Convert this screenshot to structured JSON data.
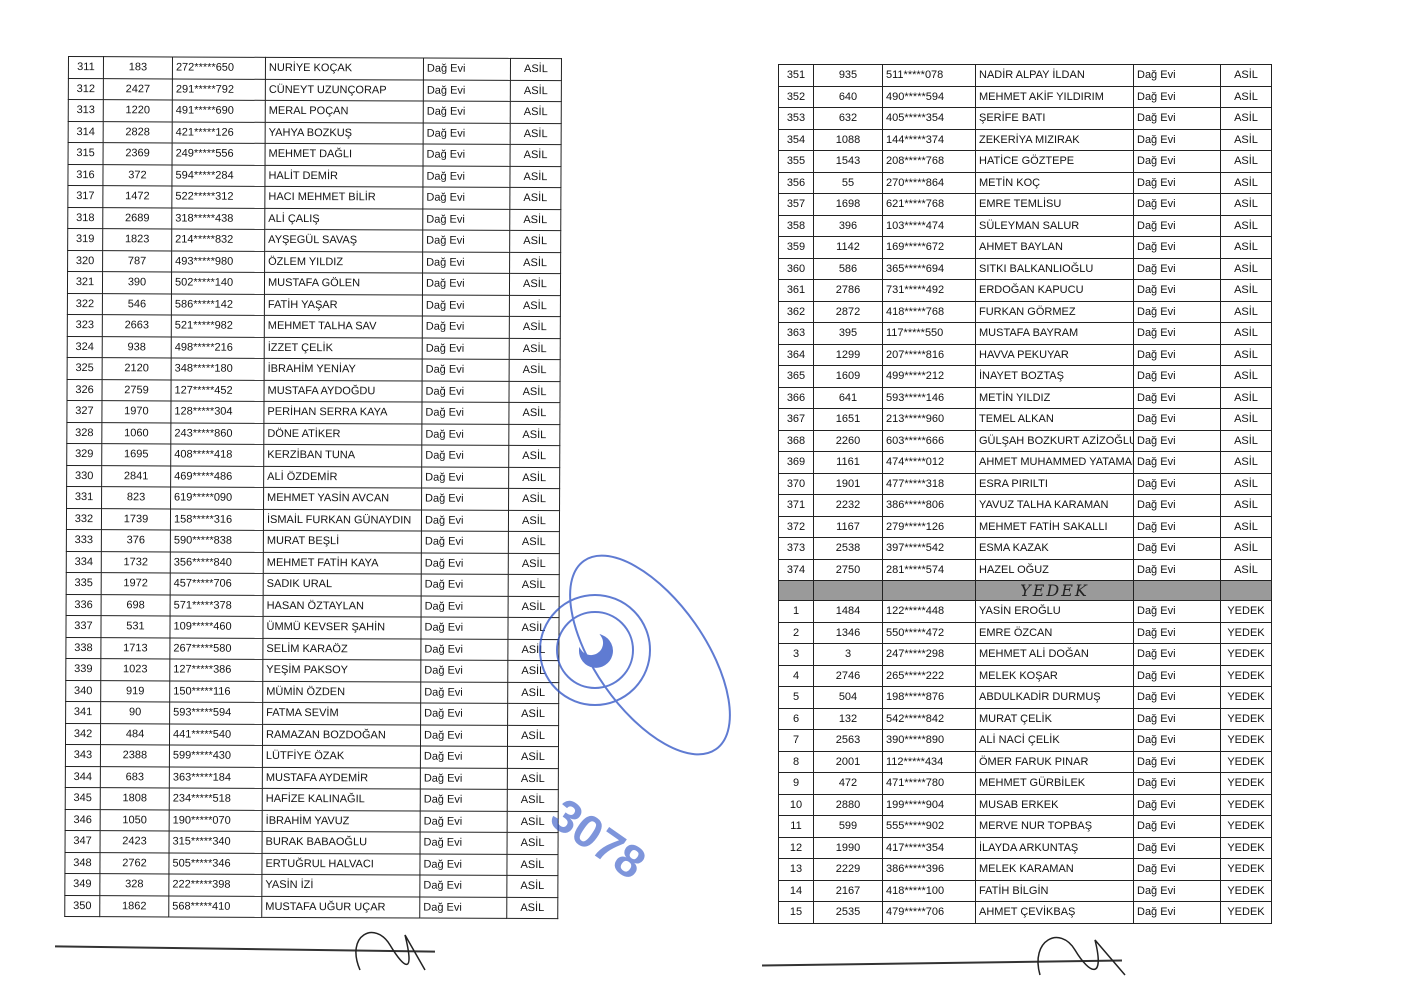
{
  "left_table": {
    "rows": [
      [
        "311",
        "183",
        "272*****650",
        "NURİYE KOÇAK",
        "Dağ Evi",
        "ASİL"
      ],
      [
        "312",
        "2427",
        "291*****792",
        "CÜNEYT UZUNÇORAP",
        "Dağ Evi",
        "ASİL"
      ],
      [
        "313",
        "1220",
        "491*****690",
        "MERAL POÇAN",
        "Dağ Evi",
        "ASİL"
      ],
      [
        "314",
        "2828",
        "421*****126",
        "YAHYA BOZKUŞ",
        "Dağ Evi",
        "ASİL"
      ],
      [
        "315",
        "2369",
        "249*****556",
        "MEHMET DAĞLI",
        "Dağ Evi",
        "ASİL"
      ],
      [
        "316",
        "372",
        "594*****284",
        "HALİT DEMİR",
        "Dağ Evi",
        "ASİL"
      ],
      [
        "317",
        "1472",
        "522*****312",
        "HACI MEHMET BİLİR",
        "Dağ Evi",
        "ASİL"
      ],
      [
        "318",
        "2689",
        "318*****438",
        "ALİ ÇALIŞ",
        "Dağ Evi",
        "ASİL"
      ],
      [
        "319",
        "1823",
        "214*****832",
        "AYŞEGÜL SAVAŞ",
        "Dağ Evi",
        "ASİL"
      ],
      [
        "320",
        "787",
        "493*****980",
        "ÖZLEM YILDIZ",
        "Dağ Evi",
        "ASİL"
      ],
      [
        "321",
        "390",
        "502*****140",
        "MUSTAFA GÖLEN",
        "Dağ Evi",
        "ASİL"
      ],
      [
        "322",
        "546",
        "586*****142",
        "FATİH YAŞAR",
        "Dağ Evi",
        "ASİL"
      ],
      [
        "323",
        "2663",
        "521*****982",
        "MEHMET TALHA SAV",
        "Dağ Evi",
        "ASİL"
      ],
      [
        "324",
        "938",
        "498*****216",
        "İZZET ÇELİK",
        "Dağ Evi",
        "ASİL"
      ],
      [
        "325",
        "2120",
        "348*****180",
        "İBRAHİM YENİAY",
        "Dağ Evi",
        "ASİL"
      ],
      [
        "326",
        "2759",
        "127*****452",
        "MUSTAFA AYDOĞDU",
        "Dağ Evi",
        "ASİL"
      ],
      [
        "327",
        "1970",
        "128*****304",
        "PERİHAN SERRA KAYA",
        "Dağ Evi",
        "ASİL"
      ],
      [
        "328",
        "1060",
        "243*****860",
        "DÖNE ATİKER",
        "Dağ Evi",
        "ASİL"
      ],
      [
        "329",
        "1695",
        "408*****418",
        "KERZİBAN TUNA",
        "Dağ Evi",
        "ASİL"
      ],
      [
        "330",
        "2841",
        "469*****486",
        "ALİ ÖZDEMİR",
        "Dağ Evi",
        "ASİL"
      ],
      [
        "331",
        "823",
        "619*****090",
        "MEHMET YASİN AVCAN",
        "Dağ Evi",
        "ASİL"
      ],
      [
        "332",
        "1739",
        "158*****316",
        "İSMAİL FURKAN GÜNAYDIN",
        "Dağ Evi",
        "ASİL"
      ],
      [
        "333",
        "376",
        "590*****838",
        "MURAT BEŞLİ",
        "Dağ Evi",
        "ASİL"
      ],
      [
        "334",
        "1732",
        "356*****840",
        "MEHMET FATİH KAYA",
        "Dağ Evi",
        "ASİL"
      ],
      [
        "335",
        "1972",
        "457*****706",
        "SADIK URAL",
        "Dağ Evi",
        "ASİL"
      ],
      [
        "336",
        "698",
        "571*****378",
        "HASAN ÖZTAYLAN",
        "Dağ Evi",
        "ASİL"
      ],
      [
        "337",
        "531",
        "109*****460",
        "ÜMMÜ KEVSER ŞAHİN",
        "Dağ Evi",
        "ASİL"
      ],
      [
        "338",
        "1713",
        "267*****580",
        "SELİM KARAÖZ",
        "Dağ Evi",
        "ASİL"
      ],
      [
        "339",
        "1023",
        "127*****386",
        "YEŞİM PAKSOY",
        "Dağ Evi",
        "ASİL"
      ],
      [
        "340",
        "919",
        "150*****116",
        "MÜMİN ÖZDEN",
        "Dağ Evi",
        "ASİL"
      ],
      [
        "341",
        "90",
        "593*****594",
        "FATMA SEVİM",
        "Dağ Evi",
        "ASİL"
      ],
      [
        "342",
        "484",
        "441*****540",
        "RAMAZAN BOZDOĞAN",
        "Dağ Evi",
        "ASİL"
      ],
      [
        "343",
        "2388",
        "599*****430",
        "LÜTFİYE ÖZAK",
        "Dağ Evi",
        "ASİL"
      ],
      [
        "344",
        "683",
        "363*****184",
        "MUSTAFA AYDEMİR",
        "Dağ Evi",
        "ASİL"
      ],
      [
        "345",
        "1808",
        "234*****518",
        "HAFİZE KALINAĞIL",
        "Dağ Evi",
        "ASİL"
      ],
      [
        "346",
        "1050",
        "190*****070",
        "İBRAHİM YAVUZ",
        "Dağ Evi",
        "ASİL"
      ],
      [
        "347",
        "2423",
        "315*****340",
        "BURAK BABAOĞLU",
        "Dağ Evi",
        "ASİL"
      ],
      [
        "348",
        "2762",
        "505*****346",
        "ERTUĞRUL HALVACI",
        "Dağ Evi",
        "ASİL"
      ],
      [
        "349",
        "328",
        "222*****398",
        "YASİN İZİ",
        "Dağ Evi",
        "ASİL"
      ],
      [
        "350",
        "1862",
        "568*****410",
        "MUSTAFA UĞUR UÇAR",
        "Dağ Evi",
        "ASİL"
      ]
    ]
  },
  "right_table": {
    "rows": [
      [
        "351",
        "935",
        "511*****078",
        "NADİR ALPAY İLDAN",
        "Dağ Evi",
        "ASİL"
      ],
      [
        "352",
        "640",
        "490*****594",
        "MEHMET AKİF YILDIRIM",
        "Dağ Evi",
        "ASİL"
      ],
      [
        "353",
        "632",
        "405*****354",
        "ŞERİFE BATI",
        "Dağ Evi",
        "ASİL"
      ],
      [
        "354",
        "1088",
        "144*****374",
        "ZEKERİYA MIZIRAK",
        "Dağ Evi",
        "ASİL"
      ],
      [
        "355",
        "1543",
        "208*****768",
        "HATİCE GÖZTEPE",
        "Dağ Evi",
        "ASİL"
      ],
      [
        "356",
        "55",
        "270*****864",
        "METİN KOÇ",
        "Dağ Evi",
        "ASİL"
      ],
      [
        "357",
        "1698",
        "621*****768",
        "EMRE TEMLİSU",
        "Dağ Evi",
        "ASİL"
      ],
      [
        "358",
        "396",
        "103*****474",
        "SÜLEYMAN SALUR",
        "Dağ Evi",
        "ASİL"
      ],
      [
        "359",
        "1142",
        "169*****672",
        "AHMET BAYLAN",
        "Dağ Evi",
        "ASİL"
      ],
      [
        "360",
        "586",
        "365*****694",
        "SITKI BALKANLIOĞLU",
        "Dağ Evi",
        "ASİL"
      ],
      [
        "361",
        "2786",
        "731*****492",
        "ERDOĞAN KAPUCU",
        "Dağ Evi",
        "ASİL"
      ],
      [
        "362",
        "2872",
        "418*****768",
        "FURKAN GÖRMEZ",
        "Dağ Evi",
        "ASİL"
      ],
      [
        "363",
        "395",
        "117*****550",
        "MUSTAFA BAYRAM",
        "Dağ Evi",
        "ASİL"
      ],
      [
        "364",
        "1299",
        "207*****816",
        "HAVVA PEKUYAR",
        "Dağ Evi",
        "ASİL"
      ],
      [
        "365",
        "1609",
        "499*****212",
        "İNAYET BOZTAŞ",
        "Dağ Evi",
        "ASİL"
      ],
      [
        "366",
        "641",
        "593*****146",
        "METİN YILDIZ",
        "Dağ Evi",
        "ASİL"
      ],
      [
        "367",
        "1651",
        "213*****960",
        "TEMEL ALKAN",
        "Dağ Evi",
        "ASİL"
      ],
      [
        "368",
        "2260",
        "603*****666",
        "GÜLŞAH BOZKURT AZİZOĞLU",
        "Dağ Evi",
        "ASİL"
      ],
      [
        "369",
        "1161",
        "474*****012",
        "AHMET MUHAMMED YATAMAN",
        "Dağ Evi",
        "ASİL"
      ],
      [
        "370",
        "1901",
        "477*****318",
        "ESRA PIRILTI",
        "Dağ Evi",
        "ASİL"
      ],
      [
        "371",
        "2232",
        "386*****806",
        "YAVUZ TALHA KARAMAN",
        "Dağ Evi",
        "ASİL"
      ],
      [
        "372",
        "1167",
        "279*****126",
        "MEHMET FATİH SAKALLI",
        "Dağ Evi",
        "ASİL"
      ],
      [
        "373",
        "2538",
        "397*****542",
        "ESMA KAZAK",
        "Dağ Evi",
        "ASİL"
      ],
      [
        "374",
        "2750",
        "281*****574",
        "HAZEL OĞUZ",
        "Dağ Evi",
        "ASİL"
      ]
    ],
    "separator_label": "YEDEK",
    "reserve_rows": [
      [
        "1",
        "1484",
        "122*****448",
        "YASİN EROĞLU",
        "Dağ Evi",
        "YEDEK"
      ],
      [
        "2",
        "1346",
        "550*****472",
        "EMRE ÖZCAN",
        "Dağ Evi",
        "YEDEK"
      ],
      [
        "3",
        "3",
        "247*****298",
        "MEHMET ALİ DOĞAN",
        "Dağ Evi",
        "YEDEK"
      ],
      [
        "4",
        "2746",
        "265*****222",
        "MELEK KOŞAR",
        "Dağ Evi",
        "YEDEK"
      ],
      [
        "5",
        "504",
        "198*****876",
        "ABDULKADİR DURMUŞ",
        "Dağ Evi",
        "YEDEK"
      ],
      [
        "6",
        "132",
        "542*****842",
        "MURAT ÇELİK",
        "Dağ Evi",
        "YEDEK"
      ],
      [
        "7",
        "2563",
        "390*****890",
        "ALİ NACİ ÇELİK",
        "Dağ Evi",
        "YEDEK"
      ],
      [
        "8",
        "2001",
        "112*****434",
        "ÖMER FARUK PINAR",
        "Dağ Evi",
        "YEDEK"
      ],
      [
        "9",
        "472",
        "471*****780",
        "MEHMET GÜRBİLEK",
        "Dağ Evi",
        "YEDEK"
      ],
      [
        "10",
        "2880",
        "199*****904",
        "MUSAB ERKEK",
        "Dağ Evi",
        "YEDEK"
      ],
      [
        "11",
        "599",
        "555*****902",
        "MERVE NUR TOPBAŞ",
        "Dağ Evi",
        "YEDEK"
      ],
      [
        "12",
        "1990",
        "417*****354",
        "İLAYDA ARKUNTAŞ",
        "Dağ Evi",
        "YEDEK"
      ],
      [
        "13",
        "2229",
        "386*****396",
        "MELEK KARAMAN",
        "Dağ Evi",
        "YEDEK"
      ],
      [
        "14",
        "2167",
        "418*****100",
        "FATİH BİLGİN",
        "Dağ Evi",
        "YEDEK"
      ],
      [
        "15",
        "2535",
        "479*****706",
        "AHMET ÇEVİKBAŞ",
        "Dağ Evi",
        "YEDEK"
      ]
    ]
  },
  "stamp": {
    "number": "3078",
    "color": "#2a4fc4"
  },
  "colors": {
    "ink": "#111111",
    "separator": "#9a9a9a",
    "stamp": "#2a4fc4"
  }
}
